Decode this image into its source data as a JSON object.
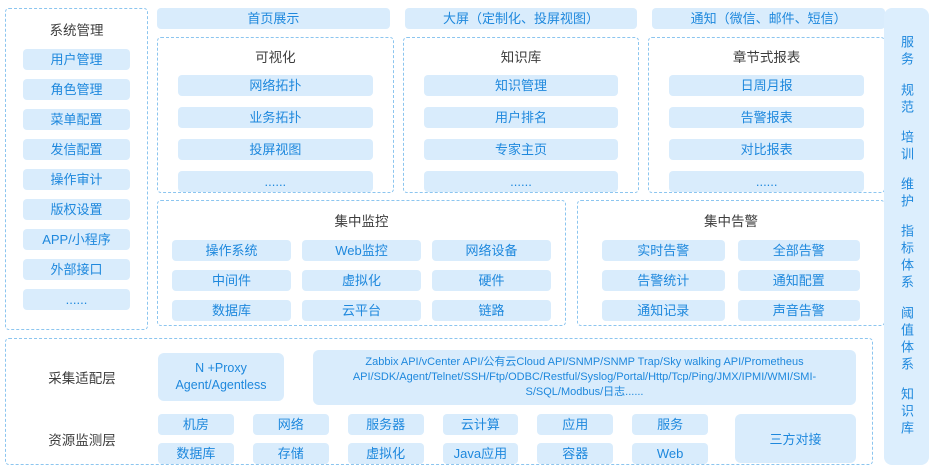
{
  "colors": {
    "box_bg": "#d9ecfc",
    "box_text": "#1e88dd",
    "title_text": "#3d3d3d",
    "dashed_border": "#8cc5ef",
    "right_sidebar_bg": "#dceefd"
  },
  "system_management": {
    "title": "系统管理",
    "items": [
      "用户管理",
      "角色管理",
      "菜单配置",
      "发信配置",
      "操作审计",
      "版权设置",
      "APP/小程序",
      "外部接口",
      "......"
    ]
  },
  "top_bars": [
    "首页展示",
    "大屏（定制化、投屏视图）",
    "通知（微信、邮件、短信）"
  ],
  "feature_sections": [
    {
      "title": "可视化",
      "items": [
        "网络拓扑",
        "业务拓扑",
        "投屏视图",
        "......"
      ]
    },
    {
      "title": "知识库",
      "items": [
        "知识管理",
        "用户排名",
        "专家主页",
        "......"
      ]
    },
    {
      "title": "章节式报表",
      "items": [
        "日周月报",
        "告警报表",
        "对比报表",
        "......"
      ]
    }
  ],
  "monitoring": {
    "title": "集中监控",
    "items": [
      "操作系统",
      "Web监控",
      "网络设备",
      "中间件",
      "虚拟化",
      "硬件",
      "数据库",
      "云平台",
      "链路"
    ]
  },
  "alerting": {
    "title": "集中告警",
    "items": [
      "实时告警",
      "全部告警",
      "告警统计",
      "通知配置",
      "通知记录",
      "声音告警"
    ]
  },
  "bottom": {
    "adapter_layer_label": "采集适配层",
    "resource_layer_label": "资源监测层",
    "proxy_box": "N +Proxy Agent/Agentless",
    "api_box": "Zabbix API/vCenter API/公有云Cloud API/SNMP/SNMP Trap/Sky walking API/Prometheus API/SDK/Agent/Telnet/SSH/Ftp/ODBC/Restful/Syslog/Portal/Http/Tcp/Ping/JMX/IPMI/WMI/SMI-S/SQL/Modbus/日志......",
    "resources": [
      "机房",
      "网络",
      "服务器",
      "云计算",
      "应用",
      "服务",
      "数据库",
      "存储",
      "虚拟化",
      "Java应用",
      "容器",
      "Web"
    ],
    "third_party": "三方对接"
  },
  "right_sidebar": {
    "items": [
      "服务",
      "规范",
      "培训",
      "维护",
      "指标体系",
      "阈值体系",
      "知识库"
    ]
  }
}
